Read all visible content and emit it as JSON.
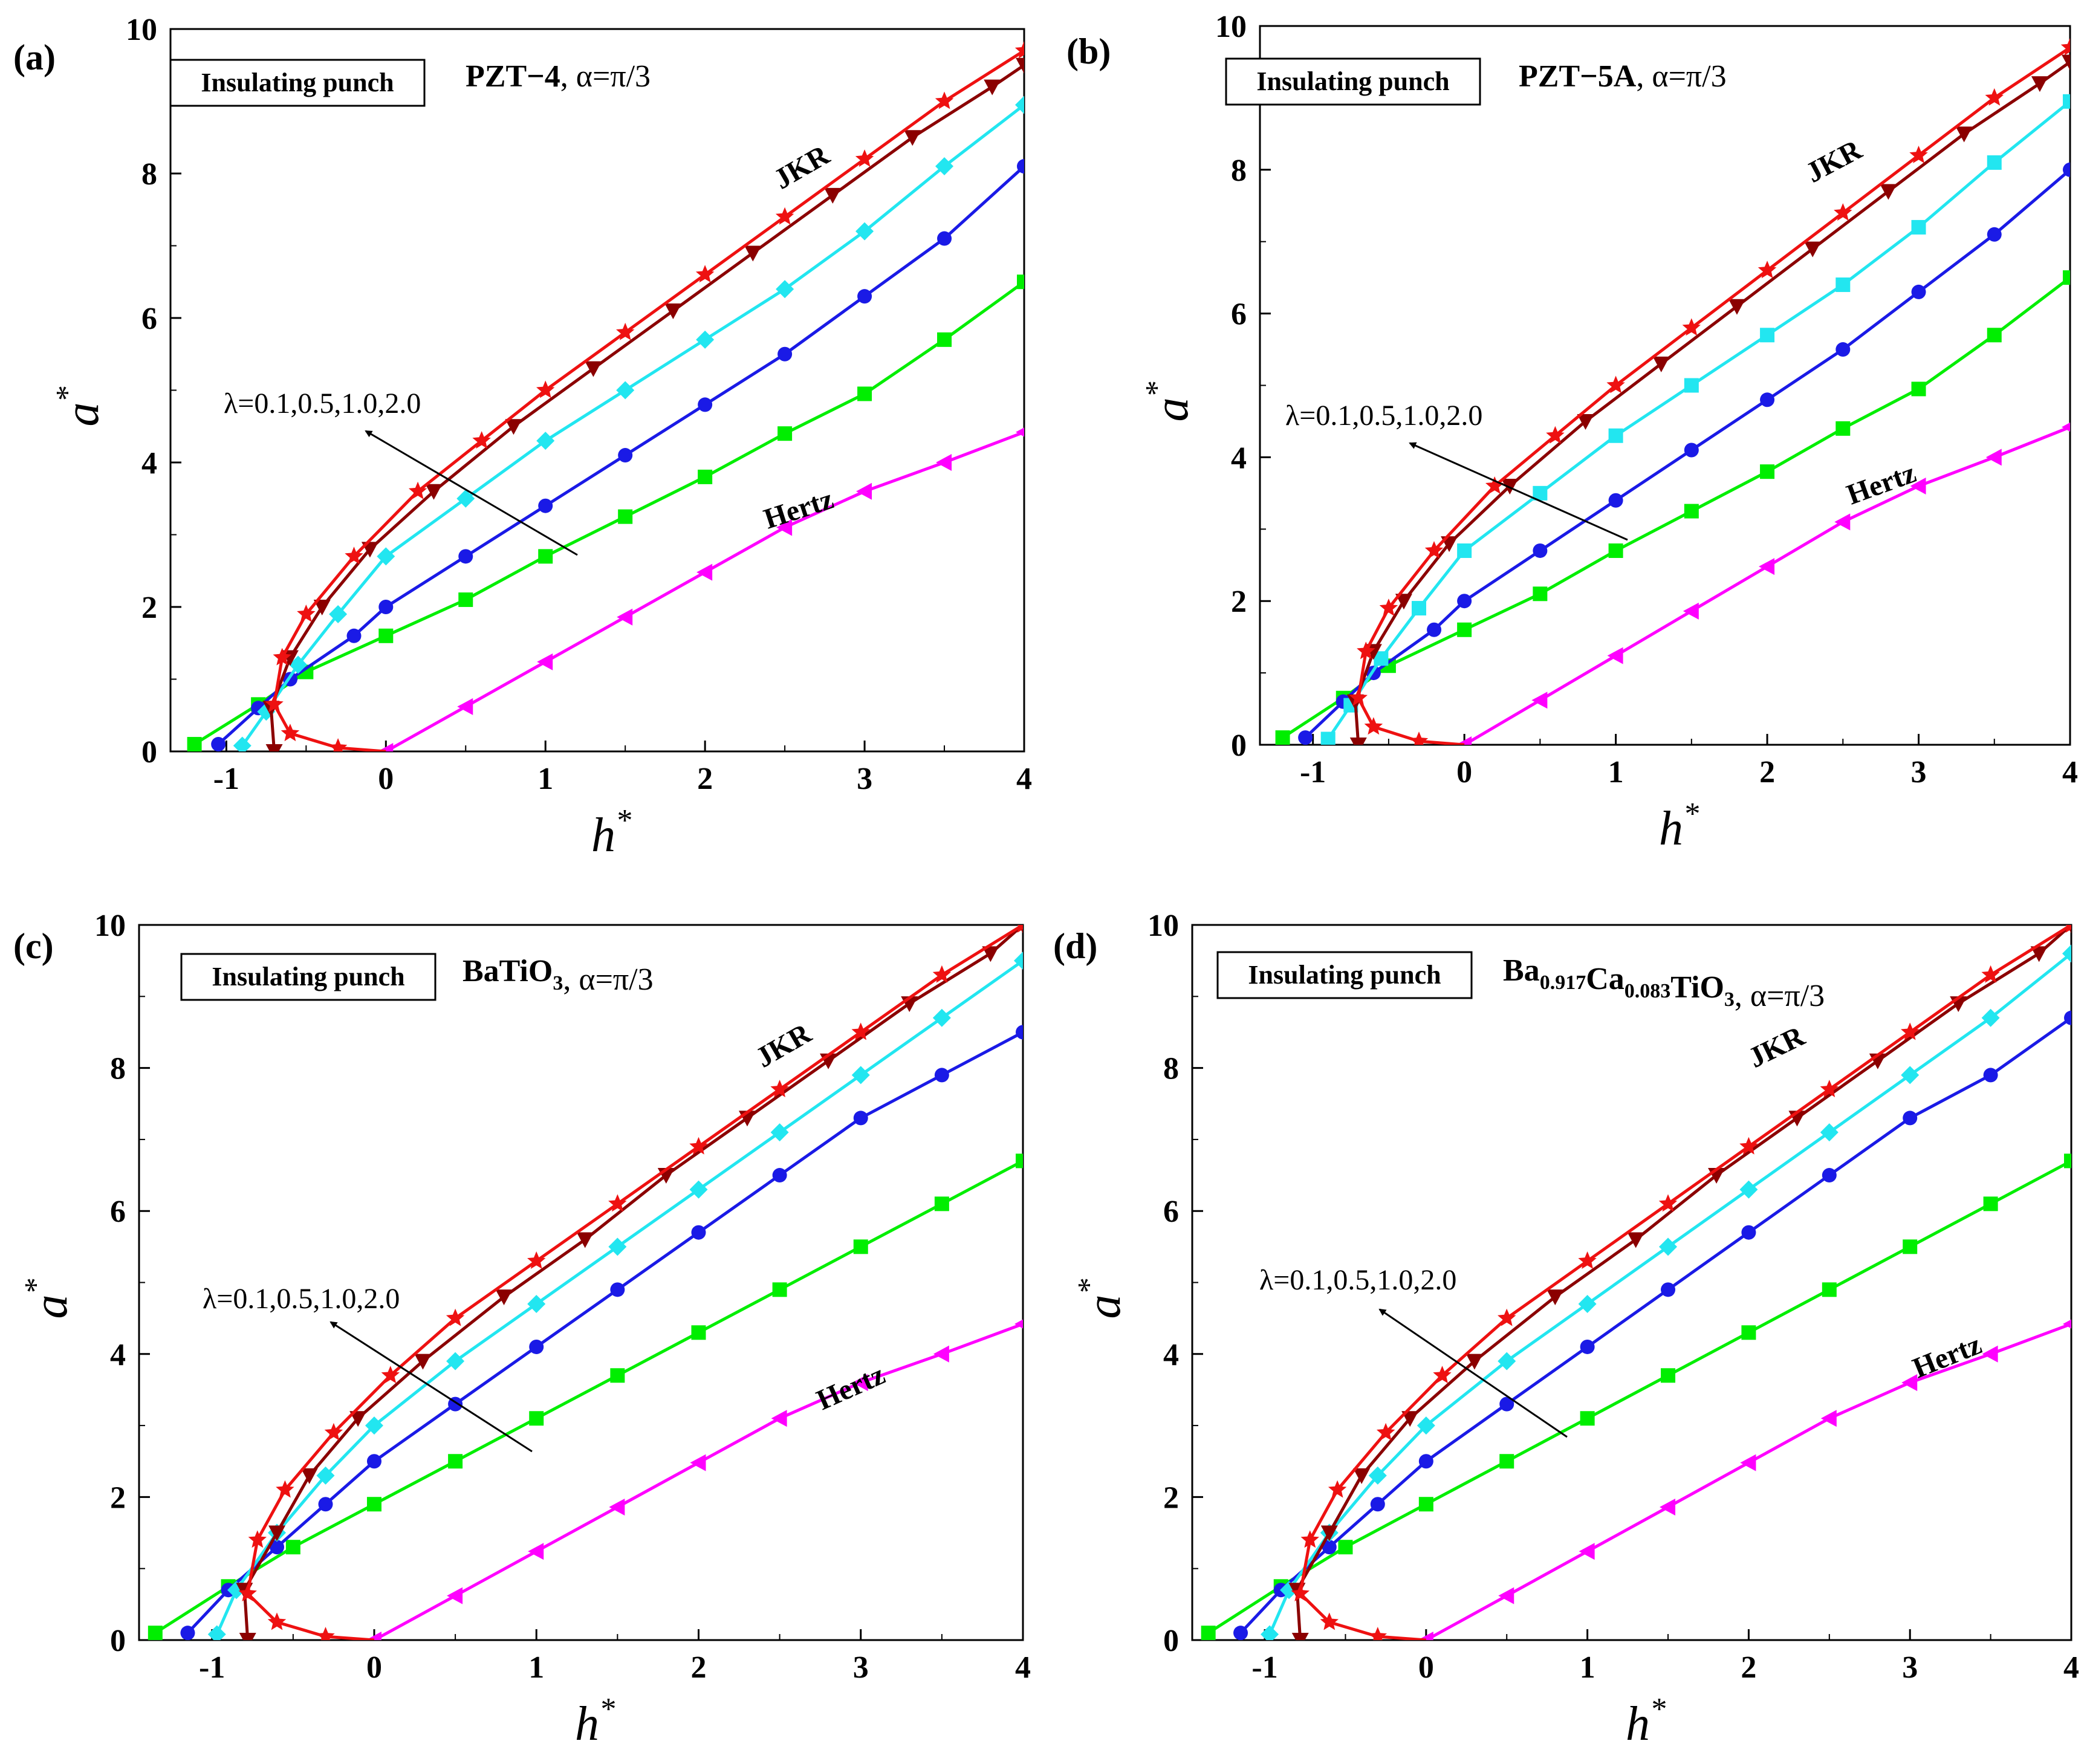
{
  "chart_data": [
    {
      "panel": "(a)",
      "type": "line",
      "inset_box": "Insulating punch",
      "title_material": "PZT−4",
      "title_suffix": ", α=π/3",
      "xlabel": "h",
      "ylabel": "a",
      "label_superscript": "*",
      "xlim": [
        -1.35,
        4
      ],
      "ylim": [
        0,
        10
      ],
      "xticks": [
        "-1",
        "0",
        "1",
        "2",
        "3",
        "4"
      ],
      "yticks": [
        "0",
        "2",
        "4",
        "6",
        "8",
        "10"
      ],
      "arrow_label": "λ=0.1,0.5,1.0,2.0",
      "series": [
        {
          "name": "Hertz",
          "color": "#ff00ff",
          "marker": "left-triangle",
          "x": [
            0,
            0.5,
            1.0,
            1.5,
            2.0,
            2.5,
            3.0,
            3.5,
            4.0
          ],
          "y": [
            0,
            0.62,
            1.24,
            1.86,
            2.48,
            3.1,
            3.6,
            4.0,
            4.42
          ]
        },
        {
          "name": "λ=0.1",
          "color": "#00ee00",
          "marker": "square",
          "x": [
            -1.2,
            -0.8,
            -0.5,
            0.0,
            0.5,
            1.0,
            1.5,
            2.0,
            2.5,
            3.0,
            3.5,
            4.0
          ],
          "y": [
            0.1,
            0.65,
            1.1,
            1.6,
            2.1,
            2.7,
            3.25,
            3.8,
            4.4,
            4.95,
            5.7,
            6.5
          ]
        },
        {
          "name": "λ=0.5",
          "color": "#1a1ae6",
          "marker": "circle",
          "x": [
            -1.05,
            -0.8,
            -0.6,
            -0.2,
            0.0,
            0.5,
            1.0,
            1.5,
            2.0,
            2.5,
            3.0,
            3.5,
            4.0
          ],
          "y": [
            0.1,
            0.6,
            1.0,
            1.6,
            2.0,
            2.7,
            3.4,
            4.1,
            4.8,
            5.5,
            6.3,
            7.1,
            8.1
          ]
        },
        {
          "name": "λ=1.0",
          "color": "#22e6f0",
          "marker": "diamond",
          "x": [
            -0.9,
            -0.75,
            -0.55,
            -0.3,
            0.0,
            0.5,
            1.0,
            1.5,
            2.0,
            2.5,
            3.0,
            3.5,
            4.0
          ],
          "y": [
            0.08,
            0.55,
            1.2,
            1.9,
            2.7,
            3.5,
            4.3,
            5.0,
            5.7,
            6.4,
            7.2,
            8.1,
            8.95
          ]
        },
        {
          "name": "λ=2.0",
          "color": "#8b0000",
          "marker": "down-triangle",
          "x": [
            -0.7,
            -0.72,
            -0.6,
            -0.4,
            -0.1,
            0.3,
            0.8,
            1.3,
            1.8,
            2.3,
            2.8,
            3.3,
            3.8,
            4.0
          ],
          "y": [
            0,
            0.6,
            1.3,
            2.0,
            2.8,
            3.6,
            4.5,
            5.3,
            6.1,
            6.9,
            7.7,
            8.5,
            9.2,
            9.5
          ]
        },
        {
          "name": "JKR",
          "color": "#ee1111",
          "marker": "star",
          "x": [
            0.0,
            -0.3,
            -0.6,
            -0.7,
            -0.65,
            -0.5,
            -0.2,
            0.2,
            0.6,
            1.0,
            1.5,
            2.0,
            2.5,
            3.0,
            3.5,
            4.0
          ],
          "y": [
            0,
            0.05,
            0.25,
            0.65,
            1.3,
            1.9,
            2.7,
            3.6,
            4.3,
            5.0,
            5.8,
            6.6,
            7.4,
            8.2,
            9.0,
            9.7
          ]
        }
      ]
    },
    {
      "panel": "(b)",
      "type": "line",
      "inset_box": "Insulating punch",
      "title_material": "PZT−5A",
      "title_suffix": ",   α=π/3",
      "xlabel": "h",
      "ylabel": "a",
      "label_superscript": "*",
      "xlim": [
        -1.35,
        4
      ],
      "ylim": [
        0,
        10
      ],
      "xticks": [
        "-1",
        "0",
        "1",
        "2",
        "3",
        "4"
      ],
      "yticks": [
        "0",
        "2",
        "4",
        "6",
        "8",
        "10"
      ],
      "arrow_label": "λ=0.1,0.5,1.0,2.0",
      "series": [
        {
          "name": "Hertz",
          "color": "#ff00ff",
          "marker": "left-triangle",
          "x": [
            0,
            0.5,
            1.0,
            1.5,
            2.0,
            2.5,
            3.0,
            3.5,
            4.0
          ],
          "y": [
            0,
            0.62,
            1.24,
            1.86,
            2.48,
            3.1,
            3.6,
            4.0,
            4.42
          ]
        },
        {
          "name": "λ=0.1",
          "color": "#00ee00",
          "marker": "square",
          "x": [
            -1.2,
            -0.8,
            -0.5,
            0.0,
            0.5,
            1.0,
            1.5,
            2.0,
            2.5,
            3.0,
            3.5,
            4.0
          ],
          "y": [
            0.1,
            0.65,
            1.1,
            1.6,
            2.1,
            2.7,
            3.25,
            3.8,
            4.4,
            4.95,
            5.7,
            6.5
          ]
        },
        {
          "name": "λ=0.5",
          "color": "#1a1ae6",
          "marker": "circle",
          "x": [
            -1.05,
            -0.8,
            -0.6,
            -0.2,
            0.0,
            0.5,
            1.0,
            1.5,
            2.0,
            2.5,
            3.0,
            3.5,
            4.0
          ],
          "y": [
            0.1,
            0.6,
            1.0,
            1.6,
            2.0,
            2.7,
            3.4,
            4.1,
            4.8,
            5.5,
            6.3,
            7.1,
            8.0
          ]
        },
        {
          "name": "λ=1.0",
          "color": "#22e6f0",
          "marker": "square",
          "x": [
            -0.9,
            -0.75,
            -0.55,
            -0.3,
            0.0,
            0.5,
            1.0,
            1.5,
            2.0,
            2.5,
            3.0,
            3.5,
            4.0
          ],
          "y": [
            0.08,
            0.55,
            1.2,
            1.9,
            2.7,
            3.5,
            4.3,
            5.0,
            5.7,
            6.4,
            7.2,
            8.1,
            8.95
          ]
        },
        {
          "name": "λ=2.0",
          "color": "#8b0000",
          "marker": "down-triangle",
          "x": [
            -0.7,
            -0.72,
            -0.6,
            -0.4,
            -0.1,
            0.3,
            0.8,
            1.3,
            1.8,
            2.3,
            2.8,
            3.3,
            3.8,
            4.0
          ],
          "y": [
            0,
            0.6,
            1.3,
            2.0,
            2.8,
            3.6,
            4.5,
            5.3,
            6.1,
            6.9,
            7.7,
            8.5,
            9.2,
            9.5
          ]
        },
        {
          "name": "JKR",
          "color": "#ee1111",
          "marker": "star",
          "x": [
            0.0,
            -0.3,
            -0.6,
            -0.7,
            -0.65,
            -0.5,
            -0.2,
            0.2,
            0.6,
            1.0,
            1.5,
            2.0,
            2.5,
            3.0,
            3.5,
            4.0
          ],
          "y": [
            0,
            0.05,
            0.25,
            0.65,
            1.3,
            1.9,
            2.7,
            3.6,
            4.3,
            5.0,
            5.8,
            6.6,
            7.4,
            8.2,
            9.0,
            9.7
          ]
        }
      ]
    },
    {
      "panel": "(c)",
      "type": "line",
      "inset_box": "Insulating punch",
      "title_material": "BaTiO",
      "title_sub": "3",
      "title_suffix": ",   α=π/3",
      "xlabel": "h",
      "ylabel": "a",
      "label_superscript": "*",
      "xlim": [
        -1.45,
        4
      ],
      "ylim": [
        0,
        10
      ],
      "xticks": [
        "-1",
        "0",
        "1",
        "2",
        "3",
        "4"
      ],
      "yticks": [
        "0",
        "2",
        "4",
        "6",
        "8",
        "10"
      ],
      "arrow_label": "λ=0.1,0.5,1.0,2.0",
      "series": [
        {
          "name": "Hertz",
          "color": "#ff00ff",
          "marker": "left-triangle",
          "x": [
            0,
            0.5,
            1.0,
            1.5,
            2.0,
            2.5,
            3.0,
            3.5,
            4.0
          ],
          "y": [
            0,
            0.62,
            1.24,
            1.86,
            2.48,
            3.1,
            3.6,
            4.0,
            4.42
          ]
        },
        {
          "name": "λ=0.1",
          "color": "#00ee00",
          "marker": "square",
          "x": [
            -1.35,
            -0.9,
            -0.5,
            0.0,
            0.5,
            1.0,
            1.5,
            2.0,
            2.5,
            3.0,
            3.5,
            4.0
          ],
          "y": [
            0.1,
            0.75,
            1.3,
            1.9,
            2.5,
            3.1,
            3.7,
            4.3,
            4.9,
            5.5,
            6.1,
            6.7
          ]
        },
        {
          "name": "λ=0.5",
          "color": "#1a1ae6",
          "marker": "circle",
          "x": [
            -1.15,
            -0.9,
            -0.6,
            -0.3,
            0.0,
            0.5,
            1.0,
            1.5,
            2.0,
            2.5,
            3.0,
            3.5,
            4.0
          ],
          "y": [
            0.1,
            0.7,
            1.3,
            1.9,
            2.5,
            3.3,
            4.1,
            4.9,
            5.7,
            6.5,
            7.3,
            7.9,
            8.5
          ]
        },
        {
          "name": "λ=1.0",
          "color": "#22e6f0",
          "marker": "diamond",
          "x": [
            -0.97,
            -0.85,
            -0.6,
            -0.3,
            0.0,
            0.5,
            1.0,
            1.5,
            2.0,
            2.5,
            3.0,
            3.5,
            4.0
          ],
          "y": [
            0.08,
            0.7,
            1.5,
            2.3,
            3.0,
            3.9,
            4.7,
            5.5,
            6.3,
            7.1,
            7.9,
            8.7,
            9.5
          ]
        },
        {
          "name": "λ=2.0",
          "color": "#8b0000",
          "marker": "down-triangle",
          "x": [
            -0.78,
            -0.8,
            -0.6,
            -0.4,
            -0.1,
            0.3,
            0.8,
            1.3,
            1.8,
            2.3,
            2.8,
            3.3,
            3.8,
            4.0
          ],
          "y": [
            0,
            0.7,
            1.5,
            2.3,
            3.1,
            3.9,
            4.8,
            5.6,
            6.5,
            7.3,
            8.1,
            8.9,
            9.6,
            10.0
          ]
        },
        {
          "name": "JKR",
          "color": "#ee1111",
          "marker": "star",
          "x": [
            0.0,
            -0.3,
            -0.6,
            -0.78,
            -0.72,
            -0.55,
            -0.25,
            0.1,
            0.5,
            1.0,
            1.5,
            2.0,
            2.5,
            3.0,
            3.5,
            4.0
          ],
          "y": [
            0,
            0.05,
            0.25,
            0.65,
            1.4,
            2.1,
            2.9,
            3.7,
            4.5,
            5.3,
            6.1,
            6.9,
            7.7,
            8.5,
            9.3,
            10.0
          ]
        }
      ]
    },
    {
      "panel": "(d)",
      "type": "line",
      "inset_box": "Insulating punch",
      "title_material": "Ba",
      "title_sub": "0.917",
      "title_material2": "Ca",
      "title_sub2": "0.083",
      "title_material3": "TiO",
      "title_sub3": "3",
      "title_suffix": ", α=π/3",
      "xlabel": "h",
      "ylabel": "a",
      "label_superscript": "*",
      "xlim": [
        -1.45,
        4
      ],
      "ylim": [
        0,
        10
      ],
      "xticks": [
        "-1",
        "0",
        "1",
        "2",
        "3",
        "4"
      ],
      "yticks": [
        "0",
        "2",
        "4",
        "6",
        "8",
        "10"
      ],
      "arrow_label": "λ=0.1,0.5,1.0,2.0",
      "series": [
        {
          "name": "Hertz",
          "color": "#ff00ff",
          "marker": "left-triangle",
          "x": [
            0,
            0.5,
            1.0,
            1.5,
            2.0,
            2.5,
            3.0,
            3.5,
            4.0
          ],
          "y": [
            0,
            0.62,
            1.24,
            1.86,
            2.48,
            3.1,
            3.6,
            4.0,
            4.42
          ]
        },
        {
          "name": "λ=0.1",
          "color": "#00ee00",
          "marker": "square",
          "x": [
            -1.35,
            -0.9,
            -0.5,
            0.0,
            0.5,
            1.0,
            1.5,
            2.0,
            2.5,
            3.0,
            3.5,
            4.0
          ],
          "y": [
            0.1,
            0.75,
            1.3,
            1.9,
            2.5,
            3.1,
            3.7,
            4.3,
            4.9,
            5.5,
            6.1,
            6.7
          ]
        },
        {
          "name": "λ=0.5",
          "color": "#1a1ae6",
          "marker": "circle",
          "x": [
            -1.15,
            -0.9,
            -0.6,
            -0.3,
            0.0,
            0.5,
            1.0,
            1.5,
            2.0,
            2.5,
            3.0,
            3.5,
            4.0
          ],
          "y": [
            0.1,
            0.7,
            1.3,
            1.9,
            2.5,
            3.3,
            4.1,
            4.9,
            5.7,
            6.5,
            7.3,
            7.9,
            8.7
          ]
        },
        {
          "name": "λ=1.0",
          "color": "#22e6f0",
          "marker": "diamond",
          "x": [
            -0.97,
            -0.85,
            -0.6,
            -0.3,
            0.0,
            0.5,
            1.0,
            1.5,
            2.0,
            2.5,
            3.0,
            3.5,
            4.0
          ],
          "y": [
            0.08,
            0.7,
            1.5,
            2.3,
            3.0,
            3.9,
            4.7,
            5.5,
            6.3,
            7.1,
            7.9,
            8.7,
            9.6
          ]
        },
        {
          "name": "λ=2.0",
          "color": "#8b0000",
          "marker": "down-triangle",
          "x": [
            -0.78,
            -0.8,
            -0.6,
            -0.4,
            -0.1,
            0.3,
            0.8,
            1.3,
            1.8,
            2.3,
            2.8,
            3.3,
            3.8,
            4.0
          ],
          "y": [
            0,
            0.7,
            1.5,
            2.3,
            3.1,
            3.9,
            4.8,
            5.6,
            6.5,
            7.3,
            8.1,
            8.9,
            9.6,
            10.0
          ]
        },
        {
          "name": "JKR",
          "color": "#ee1111",
          "marker": "star",
          "x": [
            0.0,
            -0.3,
            -0.6,
            -0.78,
            -0.72,
            -0.55,
            -0.25,
            0.1,
            0.5,
            1.0,
            1.5,
            2.0,
            2.5,
            3.0,
            3.5,
            4.0
          ],
          "y": [
            0,
            0.05,
            0.25,
            0.65,
            1.4,
            2.1,
            2.9,
            3.7,
            4.5,
            5.3,
            6.1,
            6.9,
            7.7,
            8.5,
            9.3,
            10.0
          ]
        }
      ]
    }
  ]
}
